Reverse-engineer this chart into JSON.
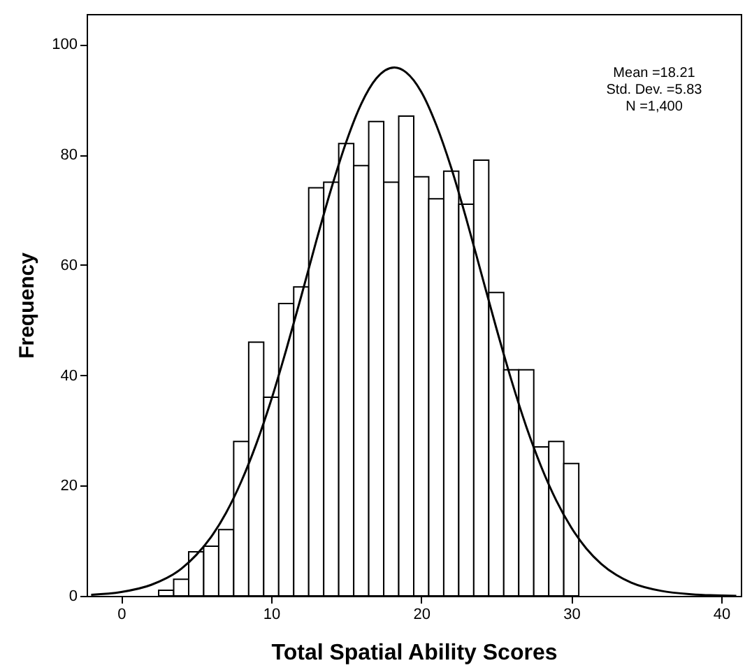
{
  "chart_data": {
    "type": "histogram",
    "xlabel": "Total Spatial Ability Scores",
    "ylabel": "Frequency",
    "annotations": [
      "Mean =18.21",
      "Std. Dev. =5.83",
      "N =1,400"
    ],
    "bins": [
      2.5,
      3.5,
      4.5,
      5.5,
      6.5,
      7.5,
      8.5,
      9.5,
      10.5,
      11.5,
      12.5,
      13.5,
      14.5,
      15.5,
      16.5,
      17.5,
      18.5,
      19.5,
      20.5,
      21.5,
      22.5,
      23.5,
      24.5,
      25.5,
      26.5,
      27.5,
      28.5,
      29.5,
      30.5
    ],
    "values": [
      1,
      3,
      8,
      9,
      12,
      28,
      46,
      36,
      53,
      56,
      74,
      75,
      82,
      78,
      86,
      75,
      87,
      76,
      72,
      77,
      71,
      79,
      55,
      41,
      41,
      27,
      28,
      24
    ],
    "color": "#ffffff",
    "series": [
      {
        "type": "line",
        "color": "#000000",
        "x": [
          -2,
          0,
          2,
          4,
          5,
          6,
          7,
          8,
          9,
          10,
          11,
          12,
          13,
          14,
          15,
          16,
          17,
          18.21,
          19,
          20,
          21,
          22,
          23,
          24,
          25,
          26,
          27,
          28,
          29,
          30,
          31,
          32,
          33,
          34,
          36,
          38,
          41
        ],
        "values": [
          0.2,
          0.7,
          2.0,
          4.9,
          7.4,
          10.7,
          15.1,
          20.7,
          27.5,
          35.5,
          44.6,
          54.3,
          64.3,
          73.8,
          82.3,
          89.2,
          93.8,
          95.8,
          94.9,
          91.4,
          85.4,
          77.6,
          68.4,
          58.5,
          48.6,
          39.2,
          30.7,
          23.4,
          17.3,
          12.4,
          8.6,
          5.8,
          3.8,
          2.4,
          0.9,
          0.3,
          0
        ]
      }
    ],
    "xlim": [
      -2.3,
      41.3
    ],
    "ylim": [
      0,
      105.5
    ],
    "xticks": [
      0,
      10,
      20,
      30,
      40
    ],
    "yticks": [
      0,
      20,
      40,
      60,
      80,
      100
    ]
  }
}
